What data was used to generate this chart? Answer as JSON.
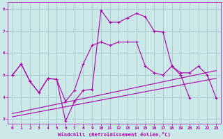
{
  "background_color": "#cde8e8",
  "grid_color": "#aacfcf",
  "line_color": "#aa00aa",
  "xlabel": "Windchill (Refroidissement éolien,°C)",
  "xlim": [
    -0.5,
    23.5
  ],
  "ylim": [
    2.8,
    8.3
  ],
  "yticks": [
    3,
    4,
    5,
    6,
    7,
    8
  ],
  "xticks": [
    0,
    1,
    2,
    3,
    4,
    5,
    6,
    7,
    8,
    9,
    10,
    11,
    12,
    13,
    14,
    15,
    16,
    17,
    18,
    19,
    20,
    21,
    22,
    23
  ],
  "series1_x": [
    0,
    1,
    2,
    3,
    4,
    5,
    6,
    7,
    8,
    9,
    10,
    11,
    12,
    13,
    14,
    15,
    16,
    17,
    18,
    19,
    20,
    21,
    22,
    23
  ],
  "series1_y": [
    5.0,
    5.5,
    4.7,
    4.2,
    4.85,
    4.8,
    3.8,
    4.3,
    5.5,
    6.35,
    6.5,
    6.35,
    6.5,
    6.5,
    6.5,
    5.4,
    5.1,
    5.0,
    5.4,
    5.0,
    3.95,
    null,
    null,
    null
  ],
  "series2_x": [
    0,
    1,
    2,
    3,
    4,
    5,
    6,
    7,
    8,
    9,
    10,
    11,
    12,
    13,
    14,
    15,
    16,
    17,
    18,
    19,
    20,
    21,
    22,
    23
  ],
  "series2_y": [
    5.0,
    5.5,
    4.7,
    4.2,
    4.85,
    4.8,
    2.9,
    3.8,
    4.3,
    4.35,
    7.95,
    7.4,
    7.4,
    7.6,
    7.8,
    7.65,
    7.0,
    6.95,
    5.4,
    5.1,
    5.1,
    5.4,
    5.0,
    3.95
  ],
  "series3_x": [
    0,
    23
  ],
  "series3_y": [
    3.1,
    4.85
  ],
  "series4_x": [
    0,
    23
  ],
  "series4_y": [
    3.25,
    5.2
  ]
}
